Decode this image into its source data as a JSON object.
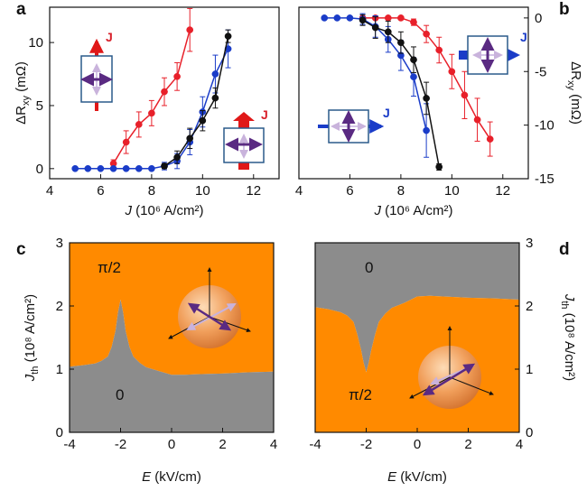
{
  "panels": {
    "a": "a",
    "b": "b",
    "c": "c",
    "d": "d"
  },
  "annotations": {
    "j_label": "J"
  },
  "colors": {
    "red": "#e8202a",
    "blue": "#1a3cc8",
    "black": "#111111",
    "orange": "#ff8a00",
    "gray": "#8c8c8c",
    "purple": "#5a2a82"
  },
  "chart_data": [
    {
      "type": "line",
      "xlabel_main": "J",
      "xlabel_unit": " (10⁶ A/cm²)",
      "ylabel_main": "ΔR",
      "ylabel_sub": "xy",
      "ylabel_unit": " (mΩ)",
      "xlim": [
        4,
        13
      ],
      "ylim": [
        -0.8,
        12.8
      ],
      "xticks": [
        4,
        6,
        8,
        10,
        12
      ],
      "yticks": [
        0,
        5,
        10
      ],
      "series": [
        {
          "color": "red",
          "x": [
            6.5,
            7,
            7.5,
            8,
            8.5,
            9,
            9.5
          ],
          "y": [
            0.4,
            2.1,
            3.5,
            4.4,
            6.1,
            7.3,
            11.0
          ],
          "err": [
            0.3,
            0.9,
            1.0,
            1.0,
            1.1,
            1.1,
            1.7
          ]
        },
        {
          "color": "blue",
          "x": [
            5,
            5.5,
            6,
            6.5,
            7,
            7.5,
            8,
            8.5,
            9,
            9.5,
            10,
            10.5,
            11
          ],
          "y": [
            0,
            0,
            0,
            0,
            0,
            0,
            0,
            0.2,
            0.6,
            2.1,
            4.5,
            7.5,
            9.5
          ],
          "err": [
            0,
            0,
            0,
            0,
            0,
            0,
            0,
            0.3,
            0.6,
            1.0,
            1.2,
            1.5,
            1.5
          ]
        },
        {
          "color": "black",
          "x": [
            8.5,
            9,
            9.5,
            10,
            10.5,
            11
          ],
          "y": [
            0.2,
            0.9,
            2.4,
            3.8,
            5.6,
            10.5
          ],
          "err": [
            0.2,
            0.5,
            0.8,
            0.8,
            0.8,
            0.5
          ]
        }
      ]
    },
    {
      "type": "line",
      "xlabel_main": "J",
      "xlabel_unit": " (10⁶ A/cm²)",
      "ylabel_main": "ΔR",
      "ylabel_sub": "xy",
      "ylabel_unit": " (mΩ)",
      "xlim": [
        4,
        13
      ],
      "ylim": [
        -15,
        1
      ],
      "xticks": [
        4,
        6,
        8,
        10,
        12
      ],
      "yticks": [
        0,
        -5,
        -10,
        -15
      ],
      "series": [
        {
          "color": "red",
          "x": [
            6.5,
            7,
            7.5,
            8,
            8.5,
            9,
            9.5,
            10,
            10.5,
            11,
            11.5
          ],
          "y": [
            0,
            0,
            0,
            0,
            -0.4,
            -1.5,
            -3.0,
            -5.0,
            -7.2,
            -9.5,
            -11.3
          ],
          "err": [
            0,
            0,
            0,
            0,
            0.3,
            0.8,
            1.2,
            1.6,
            2.2,
            2.0,
            1.6
          ]
        },
        {
          "color": "blue",
          "x": [
            5,
            5.5,
            6,
            6.5,
            7,
            7.5,
            8,
            8.5,
            9
          ],
          "y": [
            0,
            0,
            0,
            -0.1,
            -0.8,
            -2.0,
            -3.5,
            -5.5,
            -10.5
          ],
          "err": [
            0,
            0,
            0,
            0.5,
            1.0,
            1.2,
            1.4,
            1.8,
            2.5
          ]
        },
        {
          "color": "black",
          "x": [
            6.5,
            7,
            7.5,
            8,
            8.5,
            9,
            9.5
          ],
          "y": [
            -0.2,
            -0.9,
            -1.3,
            -2.3,
            -3.9,
            -7.5,
            -13.9
          ],
          "err": [
            0.5,
            1.0,
            1.0,
            1.0,
            1.2,
            1.5,
            0.3
          ]
        }
      ]
    },
    {
      "type": "area",
      "xlabel_main": "E",
      "xlabel_unit": " (kV/cm)",
      "ylabel_main": "J",
      "ylabel_sub": "th",
      "ylabel_unit": " (10⁸ A/cm²)",
      "xlim": [
        -4,
        4
      ],
      "ylim": [
        0,
        3
      ],
      "xticks": [
        -4,
        -2,
        0,
        2,
        4
      ],
      "yticks": [
        0,
        1,
        2,
        3
      ],
      "region_top_label": "π/2",
      "region_bottom_label": "0",
      "boundary_x": [
        -4,
        -3.5,
        -3,
        -2.75,
        -2.5,
        -2.35,
        -2.2,
        -2.1,
        -2.0,
        -1.9,
        -1.8,
        -1.65,
        -1.5,
        -1.25,
        -1,
        -0.5,
        0,
        0.5,
        1,
        2,
        3,
        4
      ],
      "boundary_y": [
        1.04,
        1.06,
        1.09,
        1.13,
        1.2,
        1.35,
        1.6,
        1.9,
        2.1,
        1.9,
        1.6,
        1.35,
        1.2,
        1.1,
        1.03,
        0.97,
        0.91,
        0.91,
        0.92,
        0.93,
        0.95,
        0.96
      ]
    },
    {
      "type": "area",
      "xlabel_main": "E",
      "xlabel_unit": " (kV/cm)",
      "ylabel_main": "J",
      "ylabel_sub": "th",
      "ylabel_unit": " (10⁸ A/cm²)",
      "xlim": [
        -4,
        4
      ],
      "ylim": [
        0,
        3
      ],
      "xticks": [
        -4,
        -2,
        0,
        2,
        4
      ],
      "yticks": [
        0,
        1,
        2,
        3
      ],
      "region_top_label": "0",
      "region_bottom_label": "π/2",
      "boundary_x": [
        -4,
        -3.5,
        -3,
        -2.75,
        -2.5,
        -2.35,
        -2.2,
        -2.1,
        -2.0,
        -1.9,
        -1.8,
        -1.65,
        -1.5,
        -1.25,
        -1,
        -0.5,
        0,
        0.5,
        1,
        2,
        3,
        4
      ],
      "boundary_y": [
        1.98,
        1.95,
        1.9,
        1.85,
        1.75,
        1.55,
        1.3,
        1.1,
        0.95,
        1.1,
        1.3,
        1.55,
        1.75,
        1.88,
        1.97,
        2.05,
        2.15,
        2.16,
        2.15,
        2.13,
        2.12,
        2.1
      ]
    }
  ]
}
